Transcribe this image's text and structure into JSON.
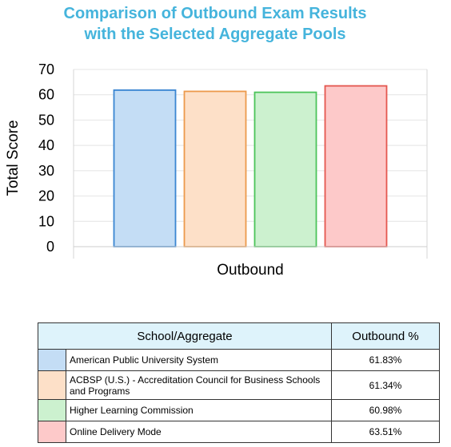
{
  "chart_data": {
    "type": "bar",
    "title": [
      "Comparison of Outbound Exam Results",
      "with the Selected Aggregate Pools"
    ],
    "xlabel": "Outbound",
    "ylabel": "Total Score",
    "ylim": [
      0,
      70
    ],
    "yticks": [
      0,
      10,
      20,
      30,
      40,
      50,
      60,
      70
    ],
    "grid": true,
    "categories": [
      "Outbound"
    ],
    "series": [
      {
        "name": "American Public University System",
        "values": [
          61.83
        ],
        "fill": "#c4ddf5",
        "stroke": "#3b86d2"
      },
      {
        "name": "ACBSP (U.S.) - Accreditation Council for Business Schools and Programs",
        "values": [
          61.34
        ],
        "fill": "#fde0c8",
        "stroke": "#ec9a4c"
      },
      {
        "name": "Higher Learning Commission",
        "values": [
          60.98
        ],
        "fill": "#ccf1cf",
        "stroke": "#4cc45a"
      },
      {
        "name": "Online Delivery Mode",
        "values": [
          63.51
        ],
        "fill": "#fdc9c9",
        "stroke": "#e4574f"
      }
    ]
  },
  "title_color": "#45b4dc",
  "table": {
    "header_school": "School/Aggregate",
    "header_value": "Outbound %",
    "header_color": "#def3fb",
    "rows": [
      {
        "name": "American Public University System",
        "value": "61.83%",
        "color": "#c4ddf5"
      },
      {
        "name": "ACBSP (U.S.) - Accreditation Council for Business Schools and Programs",
        "value": "61.34%",
        "color": "#fde0c8"
      },
      {
        "name": "Higher Learning Commission",
        "value": "60.98%",
        "color": "#ccf1cf"
      },
      {
        "name": "Online Delivery Mode",
        "value": "63.51%",
        "color": "#fdc9c9"
      }
    ]
  }
}
